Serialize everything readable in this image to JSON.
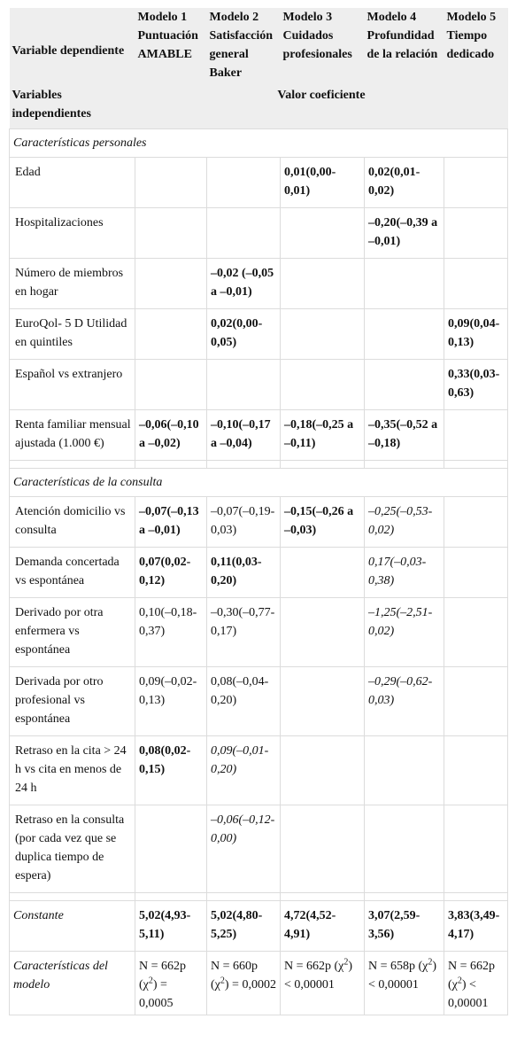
{
  "header": {
    "dependent_label": "Variable dependiente",
    "independent_label": "Variables independientes",
    "value_label": "Valor coeficiente",
    "models": [
      {
        "number": "Modelo 1",
        "name": "Puntuación AMABLE"
      },
      {
        "number": "Modelo 2",
        "name": "Satisfacción general Baker"
      },
      {
        "number": "Modelo 3",
        "name": "Cuidados profesionales"
      },
      {
        "number": "Modelo 4",
        "name": "Profundidad de la relación"
      },
      {
        "number": "Modelo 5",
        "name": "Tiempo dedicado"
      }
    ]
  },
  "sections": [
    {
      "title": "Características personales",
      "rows": [
        {
          "label": "Edad",
          "cells": [
            null,
            null,
            "0,01(0,00-0,01)",
            "0,02(0,01-0,02)",
            null
          ]
        },
        {
          "label": "Hospitalizaciones",
          "cells": [
            null,
            null,
            null,
            "–0,20(–0,39 a –0,01)",
            null
          ]
        },
        {
          "label": "Número de miembros en hogar",
          "cells": [
            null,
            "–0,02 (–0,05 a –0,01)",
            null,
            null,
            null
          ]
        },
        {
          "label": "EuroQol- 5 D Utilidad en quintiles",
          "cells": [
            null,
            "0,02(0,00-0,05)",
            null,
            null,
            "0,09(0,04-0,13)"
          ]
        },
        {
          "label": "Español vs extranjero",
          "cells": [
            null,
            null,
            null,
            null,
            "0,33(0,03-0,63)"
          ]
        },
        {
          "label": "Renta familiar mensual ajustada (1.000 €)",
          "cells": [
            "–0,06(–0,10 a –0,02)",
            "–0,10(–0,17 a –0,04)",
            "–0,18(–0,25 a –0,11)",
            "–0,35(–0,52 a –0,18)",
            null
          ]
        }
      ]
    },
    {
      "title": "Características de la consulta",
      "rows": [
        {
          "label": "Atención domicilio vs consulta",
          "cells": [
            "–0,07(–0,13 a –0,01)",
            "–0,07(–0,19-0,03)",
            "–0,15(–0,26 a –0,03)",
            "–0,25(–0,53-0,02)",
            null
          ]
        },
        {
          "label": "Demanda concertada vs espontánea",
          "cells": [
            "0,07(0,02-0,12)",
            "0,11(0,03-0,20)",
            null,
            "0,17(–0,03-0,38)",
            null
          ]
        },
        {
          "label": "Derivado por otra enfermera vs espontánea",
          "cells": [
            "0,10(–0,18-0,37)",
            "–0,30(–0,77-0,17)",
            null,
            "–1,25(–2,51-0,02)",
            null
          ]
        },
        {
          "label": "Derivada por otro profesional vs espontánea",
          "cells": [
            "0,09(–0,02-0,13)",
            "0,08(–0,04-0,20)",
            null,
            "–0,29(–0,62-0,03)",
            null
          ]
        },
        {
          "label": "Retraso en la cita > 24 h vs cita en menos de 24 h",
          "cells": [
            "0,08(0,02-0,15)",
            "0,09(–0,01-0,20)",
            null,
            null,
            null
          ]
        },
        {
          "label": "Retraso en la consulta (por cada vez que se duplica tiempo de espera)",
          "cells": [
            null,
            "–0,06(–0,12-0,00)",
            null,
            null,
            null
          ]
        }
      ]
    }
  ],
  "constant": {
    "label": "Constante",
    "cells": [
      "5,02(4,93-5,11)",
      "5,02(4,80-5,25)",
      "4,72(4,52-4,91)",
      "3,07(2,59-3,56)",
      "3,83(3,49-4,17)"
    ]
  },
  "model_stats": {
    "label": "Características del modelo",
    "cells": [
      {
        "prefix": "N = 662p (χ",
        "superscript": "2",
        "suffix": ") = 0,0005"
      },
      {
        "prefix": "N = 660p (χ",
        "superscript": "2",
        "suffix": ") = 0,0002"
      },
      {
        "prefix": "N = 662p (χ",
        "superscript": "2",
        "suffix": ") < 0,00001"
      },
      {
        "prefix": "N = 658p (χ",
        "superscript": "2",
        "suffix": ") < 0,00001"
      },
      {
        "prefix": "N = 662p (χ",
        "superscript": "2",
        "suffix": ") < 0,00001"
      }
    ]
  }
}
